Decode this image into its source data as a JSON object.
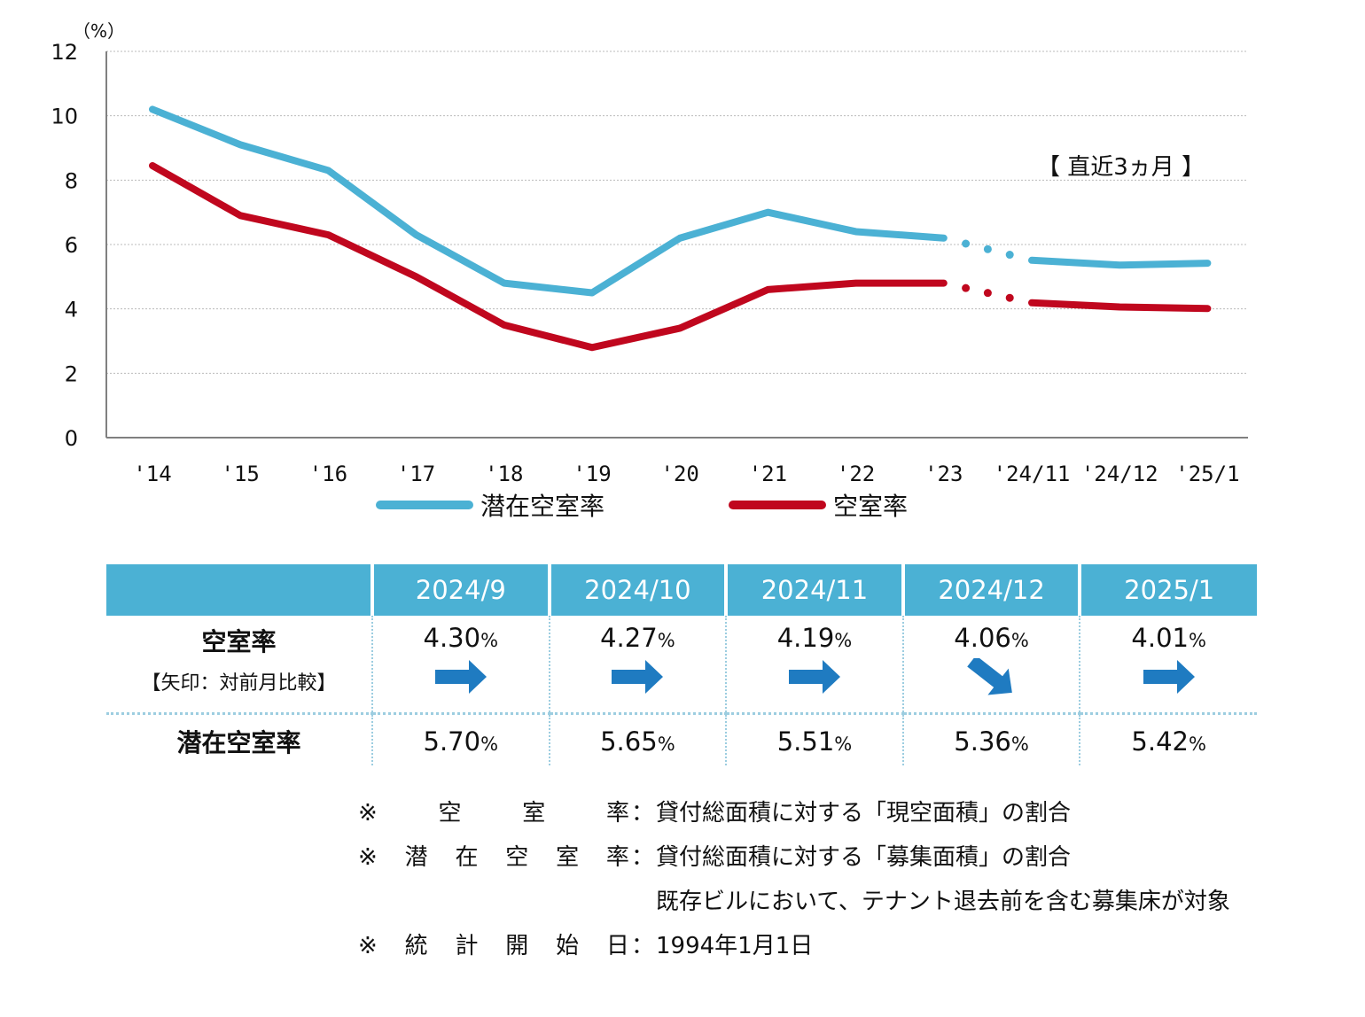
{
  "chart_data": {
    "type": "line",
    "unit_label": "（%）",
    "ylim": [
      0,
      12
    ],
    "yticks": [
      "0",
      "2",
      "4",
      "6",
      "8",
      "10",
      "12"
    ],
    "categories": [
      "'14",
      "'15",
      "'16",
      "'17",
      "'18",
      "'19",
      "'20",
      "'21",
      "'22",
      "'23",
      "'24/11",
      "'24/12",
      "'25/1"
    ],
    "series": [
      {
        "name": "潜在空室率",
        "color": "#4bb1d4",
        "values": [
          10.2,
          9.1,
          8.3,
          6.3,
          4.8,
          4.5,
          6.2,
          7.0,
          6.4,
          6.2,
          5.51,
          5.36,
          5.42
        ]
      },
      {
        "name": "空室率",
        "color": "#c0071e",
        "values": [
          8.45,
          6.9,
          6.3,
          5.0,
          3.5,
          2.8,
          3.4,
          4.6,
          4.8,
          4.8,
          4.19,
          4.06,
          4.01
        ]
      }
    ],
    "annotation": "【 直近3ヵ月 】",
    "legend_position": "bottom"
  },
  "table": {
    "headers": [
      "2024/9",
      "2024/10",
      "2024/11",
      "2024/12",
      "2025/1"
    ],
    "row1_label": "空室率",
    "row1_sublabel": "【矢印：対前月比較】",
    "row1_values": [
      "4.30",
      "4.27",
      "4.19",
      "4.06",
      "4.01"
    ],
    "row1_arrows": [
      "flat",
      "flat",
      "flat",
      "down",
      "flat"
    ],
    "row2_label": "潜在空室率",
    "row2_values": [
      "5.70",
      "5.65",
      "5.51",
      "5.36",
      "5.42"
    ],
    "pct": "%",
    "arrow_color": "#1f7bc1"
  },
  "notes": [
    {
      "key": [
        "空",
        "室",
        "率"
      ],
      "colon": "：",
      "lines": [
        "貸付総面積に対する「現空面積」の割合"
      ]
    },
    {
      "key": [
        "潜",
        "在",
        "空",
        "室",
        "率"
      ],
      "colon": "：",
      "lines": [
        "貸付総面積に対する「募集面積」の割合",
        "既存ビルにおいて、テナント退去前を含む募集床が対象"
      ]
    },
    {
      "key": [
        "統",
        "計",
        "開",
        "始",
        "日"
      ],
      "colon": "：",
      "lines": [
        "1994年1月1日"
      ]
    }
  ],
  "note_prefix": "※"
}
